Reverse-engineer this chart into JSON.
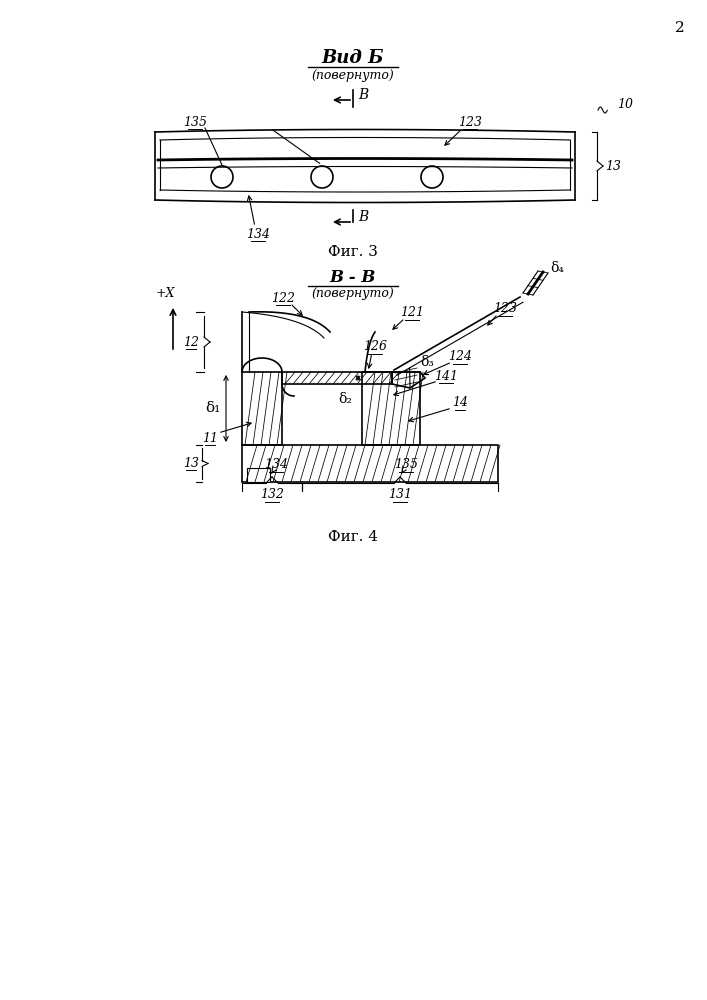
{
  "page_number": "2",
  "fig3_title": "Вид Б",
  "fig3_subtitle": "(повернуто)",
  "fig3_caption": "Фиг. 3",
  "fig4_title": "B - B",
  "fig4_subtitle": "(повернуто)",
  "fig4_caption": "Фиг. 4",
  "bg_color": "#ffffff",
  "line_color": "#000000"
}
